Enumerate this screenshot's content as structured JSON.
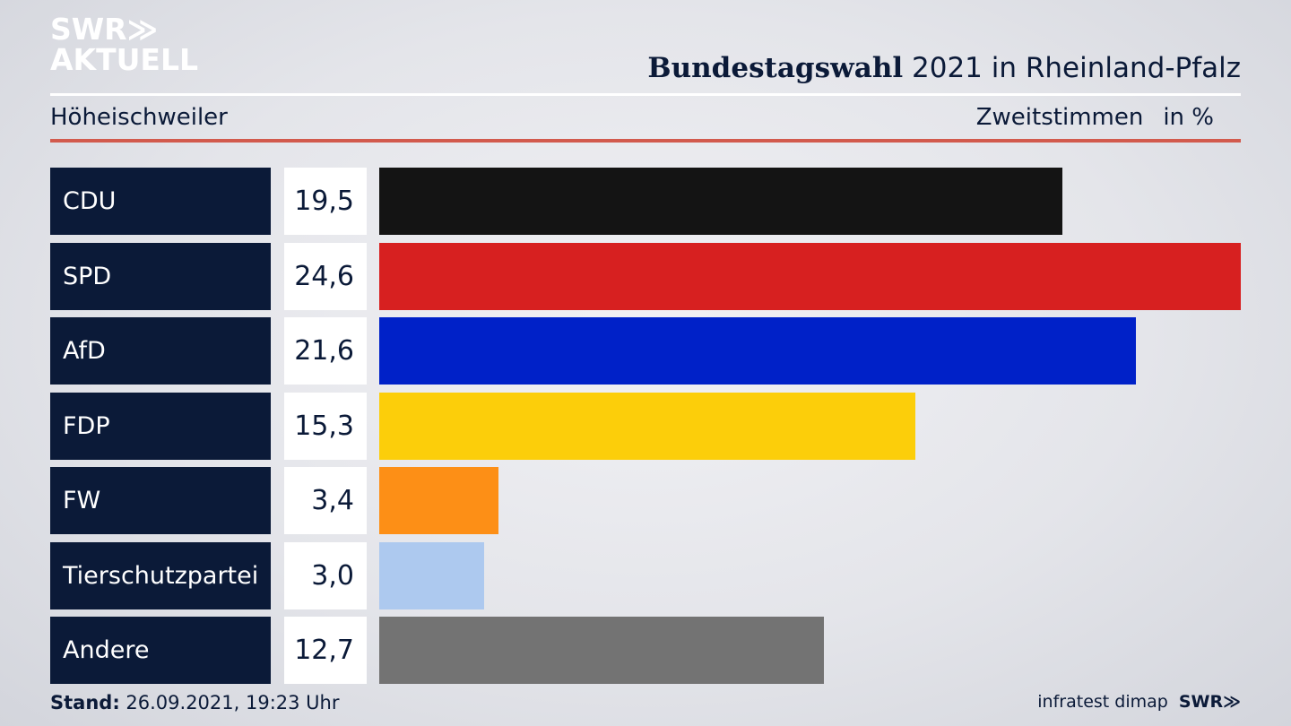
{
  "logo": {
    "line1": "SWR≫",
    "line2": "AKTUELL"
  },
  "header": {
    "title_bold": "Bundestagswahl",
    "title_rest": " 2021 in Rheinland-Pfalz",
    "location": "Höheischweiler",
    "measure": "Zweitstimmen",
    "unit": "in %"
  },
  "chart_data": {
    "type": "bar",
    "orientation": "horizontal",
    "categories": [
      "CDU",
      "SPD",
      "AfD",
      "FDP",
      "FW",
      "Tierschutzpartei",
      "Andere"
    ],
    "value_labels": [
      "19,5",
      "24,6",
      "21,6",
      "15,3",
      "3,4",
      "3,0",
      "12,7"
    ],
    "values": [
      19.5,
      24.6,
      21.6,
      15.3,
      3.4,
      3.0,
      12.7
    ],
    "colors": [
      "#141414",
      "#d72020",
      "#0021c8",
      "#fcce0a",
      "#fd8f16",
      "#adc9ef",
      "#737373"
    ],
    "title": "Bundestagswahl 2021 in Rheinland-Pfalz",
    "xlabel": "",
    "ylabel": "",
    "xlim": [
      0,
      24.6
    ],
    "grid": false
  },
  "footer": {
    "stand_label": "Stand:",
    "stand_value": " 26.09.2021, 19:23 Uhr",
    "source": "infratest dimap",
    "brand": "SWR≫"
  }
}
